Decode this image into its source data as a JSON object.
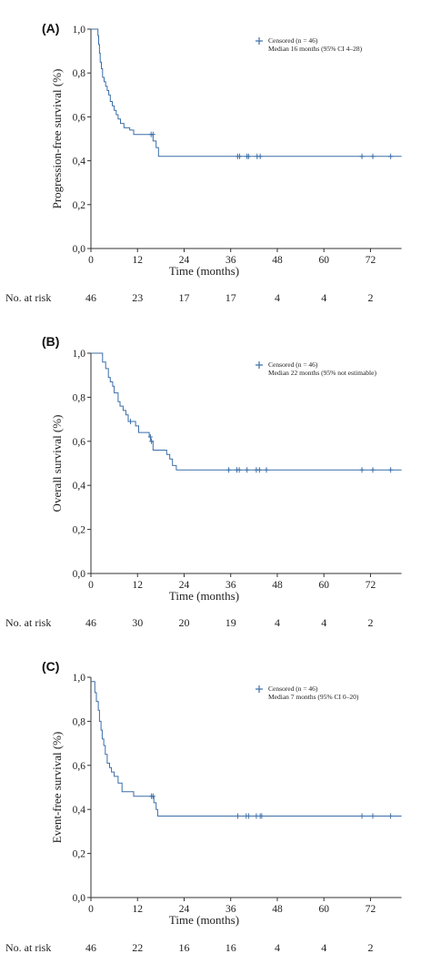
{
  "colors": {
    "curve": "#3b6ea8",
    "axis": "#333333",
    "text": "#222222"
  },
  "chart_data": [
    {
      "type": "line",
      "panel_label": "(A)",
      "xlabel": "Time (months)",
      "ylabel": "Progression-free survival (%)",
      "xlim": [
        0,
        80
      ],
      "ylim": [
        0,
        1
      ],
      "xticks": [
        0,
        12,
        24,
        36,
        48,
        60,
        72
      ],
      "xtick_labels": [
        "0",
        "12",
        "24",
        "36",
        "48",
        "60",
        "72"
      ],
      "yticks": [
        0,
        0.2,
        0.4,
        0.6,
        0.8,
        1.0
      ],
      "ytick_labels": [
        "0,0",
        "0,2",
        "0,4",
        "0,6",
        "0,8",
        "1,0"
      ],
      "legend": {
        "marker": "+",
        "line1": "Censored (n = 46)",
        "line2": "Median 16 months (95% CI 4–28)",
        "placement": "top-right"
      },
      "series": [
        {
          "steps": [
            [
              0,
              1.0
            ],
            [
              1.5,
              1.0
            ],
            [
              1.8,
              0.97
            ],
            [
              2.0,
              0.93
            ],
            [
              2.2,
              0.89
            ],
            [
              2.4,
              0.85
            ],
            [
              2.7,
              0.82
            ],
            [
              3.0,
              0.78
            ],
            [
              3.4,
              0.76
            ],
            [
              3.8,
              0.74
            ],
            [
              4.2,
              0.72
            ],
            [
              4.6,
              0.7
            ],
            [
              5.0,
              0.67
            ],
            [
              5.5,
              0.65
            ],
            [
              6.0,
              0.63
            ],
            [
              6.5,
              0.61
            ],
            [
              7.0,
              0.59
            ],
            [
              7.6,
              0.57
            ],
            [
              8.5,
              0.55
            ],
            [
              10.0,
              0.54
            ],
            [
              11.0,
              0.52
            ],
            [
              15.0,
              0.52
            ],
            [
              16.0,
              0.49
            ],
            [
              16.8,
              0.46
            ],
            [
              17.4,
              0.42
            ],
            [
              80.0,
              0.42
            ]
          ],
          "censored": [
            [
              15.5,
              0.52
            ],
            [
              16.0,
              0.52
            ],
            [
              37.8,
              0.42
            ],
            [
              38.3,
              0.42
            ],
            [
              40.2,
              0.42
            ],
            [
              40.6,
              0.42
            ],
            [
              42.8,
              0.42
            ],
            [
              43.6,
              0.42
            ],
            [
              69.8,
              0.42
            ],
            [
              72.6,
              0.42
            ],
            [
              77.2,
              0.42
            ]
          ]
        }
      ],
      "at_risk": {
        "label": "No. at risk",
        "times": [
          0,
          12,
          24,
          36,
          48,
          60,
          72
        ],
        "counts": [
          "46",
          "23",
          "17",
          "17",
          "4",
          "4",
          "2"
        ]
      }
    },
    {
      "type": "line",
      "panel_label": "(B)",
      "xlabel": "Time (months)",
      "ylabel": "Overall survival (%)",
      "xlim": [
        0,
        80
      ],
      "ylim": [
        0,
        1
      ],
      "xticks": [
        0,
        12,
        24,
        36,
        48,
        60,
        72
      ],
      "xtick_labels": [
        "0",
        "12",
        "24",
        "36",
        "48",
        "60",
        "72"
      ],
      "yticks": [
        0,
        0.2,
        0.4,
        0.6,
        0.8,
        1.0
      ],
      "ytick_labels": [
        "0,0",
        "0,2",
        "0,4",
        "0,6",
        "0,8",
        "1,0"
      ],
      "legend": {
        "marker": "+",
        "line1": "Censored (n = 46)",
        "line2": "Median 22 months (95% not estimable)",
        "placement": "top-right"
      },
      "series": [
        {
          "steps": [
            [
              0,
              1.0
            ],
            [
              2.5,
              1.0
            ],
            [
              3.0,
              0.96
            ],
            [
              3.8,
              0.93
            ],
            [
              4.5,
              0.89
            ],
            [
              5.0,
              0.87
            ],
            [
              5.6,
              0.85
            ],
            [
              6.0,
              0.82
            ],
            [
              7.0,
              0.78
            ],
            [
              7.5,
              0.76
            ],
            [
              8.3,
              0.74
            ],
            [
              9.0,
              0.72
            ],
            [
              9.6,
              0.69
            ],
            [
              11.5,
              0.67
            ],
            [
              12.3,
              0.64
            ],
            [
              15.0,
              0.62
            ],
            [
              15.4,
              0.6
            ],
            [
              16.0,
              0.56
            ],
            [
              19.5,
              0.54
            ],
            [
              20.3,
              0.52
            ],
            [
              21.0,
              0.49
            ],
            [
              22.0,
              0.47
            ],
            [
              80.0,
              0.47
            ]
          ],
          "censored": [
            [
              10.2,
              0.69
            ],
            [
              15.3,
              0.62
            ],
            [
              15.6,
              0.6
            ],
            [
              35.5,
              0.47
            ],
            [
              37.6,
              0.47
            ],
            [
              38.2,
              0.47
            ],
            [
              40.2,
              0.47
            ],
            [
              42.6,
              0.47
            ],
            [
              43.4,
              0.47
            ],
            [
              45.2,
              0.47
            ],
            [
              69.8,
              0.47
            ],
            [
              72.6,
              0.47
            ],
            [
              77.2,
              0.47
            ]
          ]
        }
      ],
      "at_risk": {
        "label": "No. at risk",
        "times": [
          0,
          12,
          24,
          36,
          48,
          60,
          72
        ],
        "counts": [
          "46",
          "30",
          "20",
          "19",
          "4",
          "4",
          "2"
        ]
      }
    },
    {
      "type": "line",
      "panel_label": "(C)",
      "xlabel": "Time (months)",
      "ylabel": "Event-free survival (%)",
      "xlim": [
        0,
        80
      ],
      "ylim": [
        0,
        1
      ],
      "xticks": [
        0,
        12,
        24,
        36,
        48,
        60,
        72
      ],
      "xtick_labels": [
        "0",
        "12",
        "24",
        "36",
        "48",
        "60",
        "72"
      ],
      "yticks": [
        0,
        0.2,
        0.4,
        0.6,
        0.8,
        1.0
      ],
      "ytick_labels": [
        "0,0",
        "0,2",
        "0,4",
        "0,6",
        "0,8",
        "1,0"
      ],
      "legend": {
        "marker": "+",
        "line1": "Censored (n = 46)",
        "line2": "Median 7 months (95% CI 0–20)",
        "placement": "top-right"
      },
      "series": [
        {
          "steps": [
            [
              0,
              0.98
            ],
            [
              0.8,
              0.98
            ],
            [
              1.0,
              0.93
            ],
            [
              1.4,
              0.89
            ],
            [
              1.9,
              0.85
            ],
            [
              2.2,
              0.8
            ],
            [
              2.6,
              0.76
            ],
            [
              2.9,
              0.72
            ],
            [
              3.3,
              0.69
            ],
            [
              3.7,
              0.65
            ],
            [
              4.2,
              0.61
            ],
            [
              4.8,
              0.59
            ],
            [
              5.3,
              0.57
            ],
            [
              6.0,
              0.55
            ],
            [
              7.0,
              0.52
            ],
            [
              8.0,
              0.48
            ],
            [
              10.5,
              0.48
            ],
            [
              11.0,
              0.46
            ],
            [
              15.5,
              0.46
            ],
            [
              16.2,
              0.43
            ],
            [
              16.8,
              0.4
            ],
            [
              17.2,
              0.37
            ],
            [
              80.0,
              0.37
            ]
          ],
          "censored": [
            [
              15.6,
              0.46
            ],
            [
              16.0,
              0.46
            ],
            [
              37.8,
              0.37
            ],
            [
              40.0,
              0.37
            ],
            [
              40.6,
              0.37
            ],
            [
              42.6,
              0.37
            ],
            [
              43.6,
              0.37
            ],
            [
              44.0,
              0.37
            ],
            [
              69.8,
              0.37
            ],
            [
              72.6,
              0.37
            ],
            [
              77.2,
              0.37
            ]
          ]
        }
      ],
      "at_risk": {
        "label": "No. at risk",
        "times": [
          0,
          12,
          24,
          36,
          48,
          60,
          72
        ],
        "counts": [
          "46",
          "22",
          "16",
          "16",
          "4",
          "4",
          "2"
        ]
      }
    }
  ]
}
